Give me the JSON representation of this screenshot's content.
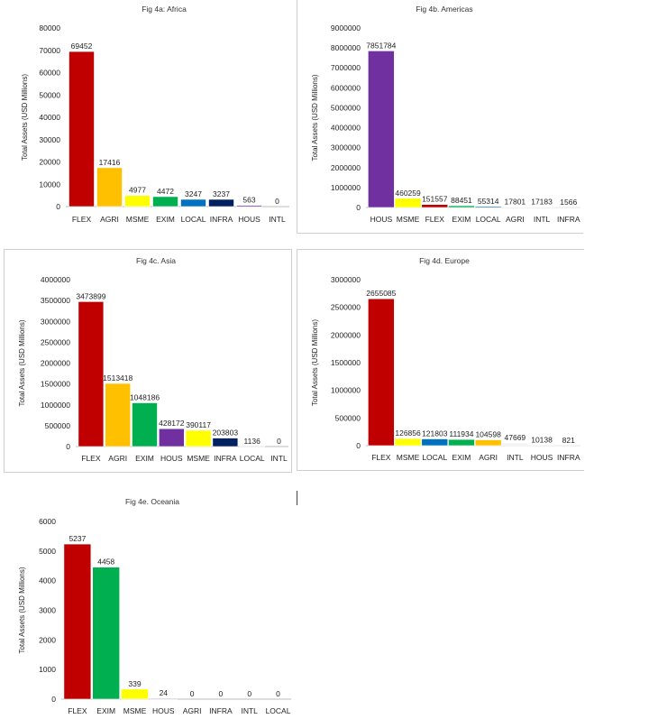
{
  "colors": {
    "FLEX": "#c00000",
    "AGRI": "#ffc000",
    "MSME": "#ffff00",
    "EXIM": "#00b050",
    "LOCAL": "#0070c0",
    "INFRA": "#002060",
    "HOUS": "#7030a0",
    "INTL": "#f2f2f2"
  },
  "chart_data": [
    {
      "type": "bar",
      "title": "Fig 4a: Africa",
      "ylabel": "Total Assets (USD Millions)",
      "xlabel": "",
      "ylim": [
        0,
        80000
      ],
      "yticks": [
        0,
        10000,
        20000,
        30000,
        40000,
        50000,
        60000,
        70000,
        80000
      ],
      "categories": [
        "FLEX",
        "AGRI",
        "MSME",
        "EXIM",
        "LOCAL",
        "INFRA",
        "HOUS",
        "INTL"
      ],
      "values": [
        69452,
        17416,
        4977,
        4472,
        3247,
        3237,
        563,
        0
      ],
      "labels": [
        "69452",
        "17416",
        "4977",
        "4472",
        "3247",
        "3237",
        "563",
        "0"
      ]
    },
    {
      "type": "bar",
      "title": "Fig 4b. Americas",
      "ylabel": "Total Assets (USD Millions)",
      "xlabel": "",
      "ylim": [
        0,
        9000000
      ],
      "yticks": [
        0,
        1000000,
        2000000,
        3000000,
        4000000,
        5000000,
        6000000,
        7000000,
        8000000,
        9000000
      ],
      "categories": [
        "HOUS",
        "MSME",
        "FLEX",
        "EXIM",
        "LOCAL",
        "AGRI",
        "INTL",
        "INFRA"
      ],
      "values": [
        7851784,
        460259,
        151557,
        88451,
        55314,
        17801,
        17183,
        1566
      ],
      "labels": [
        "7851784",
        "460259",
        "151557",
        "88451",
        "55314",
        "17801",
        "17183",
        "1566"
      ]
    },
    {
      "type": "bar",
      "title": "Fig 4c. Asia",
      "ylabel": "Total Assets (USD Millions)",
      "xlabel": "",
      "ylim": [
        0,
        4000000
      ],
      "yticks": [
        0,
        500000,
        1000000,
        1500000,
        2000000,
        2500000,
        3000000,
        3500000,
        4000000
      ],
      "categories": [
        "FLEX",
        "AGRI",
        "EXIM",
        "HOUS",
        "MSME",
        "INFRA",
        "LOCAL",
        "INTL"
      ],
      "values": [
        3473899,
        1513418,
        1048186,
        428172,
        390117,
        203803,
        1136,
        0
      ],
      "labels": [
        "3473899",
        "1513418",
        "1048186",
        "428172",
        "390117",
        "203803",
        "1136",
        "0"
      ]
    },
    {
      "type": "bar",
      "title": "Fig 4d. Europe",
      "ylabel": "Total Assets (USD Millions)",
      "xlabel": "",
      "ylim": [
        0,
        3000000
      ],
      "yticks": [
        0,
        500000,
        1000000,
        1500000,
        2000000,
        2500000,
        3000000
      ],
      "categories": [
        "FLEX",
        "MSME",
        "LOCAL",
        "EXIM",
        "AGRI",
        "INTL",
        "HOUS",
        "INFRA"
      ],
      "values": [
        2655085,
        126856,
        121803,
        111934,
        104598,
        47669,
        10138,
        821
      ],
      "labels": [
        "2655085",
        "126856",
        "121803",
        "111934",
        "104598",
        "47669",
        "10138",
        "821"
      ]
    },
    {
      "type": "bar",
      "title": "Fig 4e. Oceania",
      "ylabel": "Total Assets (USD Millions)",
      "xlabel": "",
      "ylim": [
        0,
        6000
      ],
      "yticks": [
        0,
        1000,
        2000,
        3000,
        4000,
        5000,
        6000
      ],
      "categories": [
        "FLEX",
        "EXIM",
        "MSME",
        "HOUS",
        "AGRI",
        "INFRA",
        "INTL",
        "LOCAL"
      ],
      "values": [
        5237,
        4458,
        339,
        24,
        0,
        0,
        0,
        0
      ],
      "labels": [
        "5237",
        "4458",
        "339",
        "24",
        "0",
        "0",
        "0",
        "0"
      ]
    }
  ]
}
